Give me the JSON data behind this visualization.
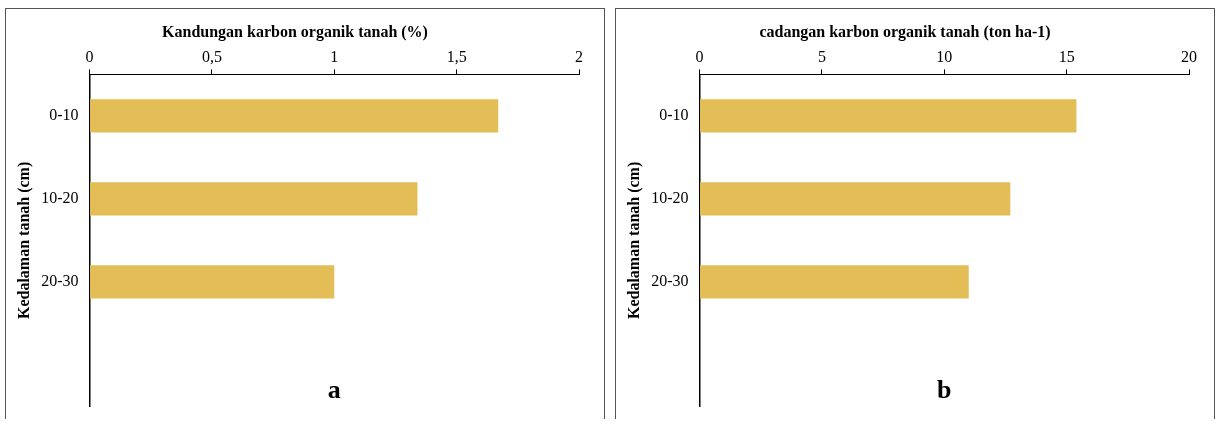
{
  "chart_data": [
    {
      "type": "bar",
      "orientation": "horizontal",
      "title": "Kandungan karbon organik tanah (%)",
      "ylabel": "Kedalaman tanah (cm)",
      "categories": [
        "0-10",
        "10-20",
        "20-30",
        null
      ],
      "values": [
        1.67,
        1.34,
        1.0,
        null
      ],
      "color": "#e3bd55",
      "xlim": [
        0,
        2
      ],
      "xticks": [
        0,
        {
          "value": 0.5,
          "label": "0,5"
        },
        1,
        {
          "value": 1.5,
          "label": "1,5"
        },
        2
      ],
      "grid": false,
      "legend": false,
      "annotations": [
        "a"
      ]
    },
    {
      "type": "bar",
      "orientation": "horizontal",
      "title": "cadangan karbon organik tanah (ton ha-1)",
      "ylabel": "Kedalaman tanah (cm)",
      "categories": [
        "0-10",
        "10-20",
        "20-30",
        null
      ],
      "values": [
        15.4,
        12.7,
        11.0,
        null
      ],
      "color": "#e3bd55",
      "xlim": [
        0,
        20
      ],
      "xticks": [
        0,
        5,
        10,
        15,
        20
      ],
      "grid": false,
      "legend": false,
      "annotations": [
        "b"
      ]
    }
  ]
}
